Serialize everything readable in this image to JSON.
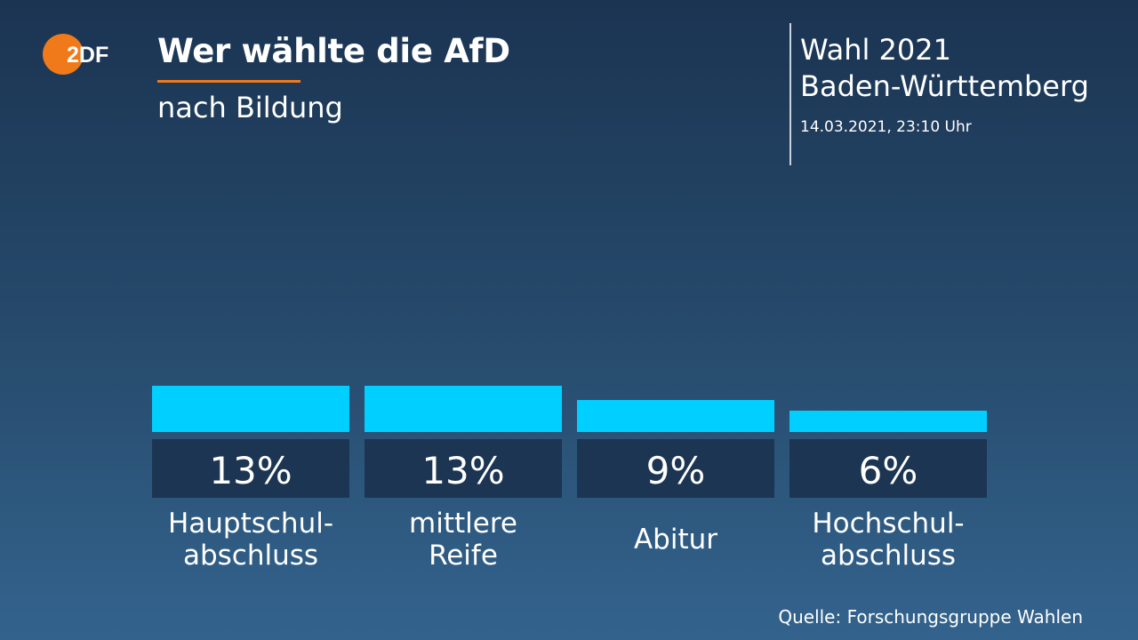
{
  "header": {
    "title": "Wer wählte die AfD",
    "subtitle": "nach Bildung",
    "logo_text": "2DF"
  },
  "election": {
    "name": "Wahl 2021",
    "region": "Baden-Württemberg",
    "timestamp": "14.03.2021, 23:10 Uhr"
  },
  "chart_data": {
    "type": "bar",
    "title": "Wer wählte die AfD",
    "subtitle": "nach Bildung",
    "categories": [
      [
        "Hauptschul-",
        "abschluss"
      ],
      [
        "mittlere",
        "Reife"
      ],
      [
        "Abitur"
      ],
      [
        "Hochschul-",
        "abschluss"
      ]
    ],
    "values": [
      13,
      13,
      9,
      6
    ],
    "value_labels": [
      "13%",
      "13%",
      "9%",
      "6%"
    ],
    "unit": "%",
    "ylim": [
      0,
      13
    ],
    "xlabel": "",
    "ylabel": "",
    "grid": false
  },
  "colors": {
    "bar": "#00cfff",
    "label_box": "#1c3552",
    "accent": "#f07a1a"
  },
  "footer": {
    "source": "Quelle: Forschungsgruppe Wahlen"
  }
}
